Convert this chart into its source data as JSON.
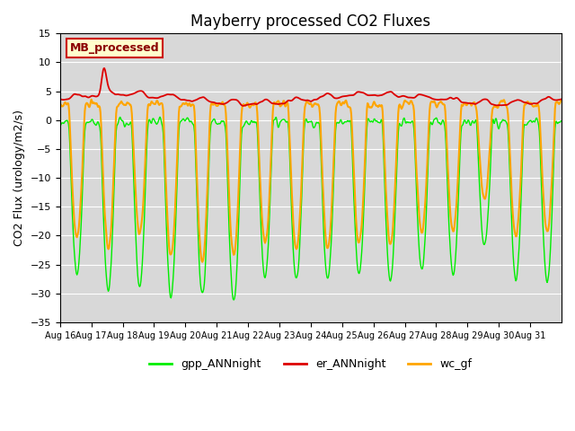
{
  "title": "Mayberry processed CO2 Fluxes",
  "ylabel": "CO2 Flux (urology/m2/s)",
  "ylim": [
    -35,
    15
  ],
  "yticks": [
    -35,
    -30,
    -25,
    -20,
    -15,
    -10,
    -5,
    0,
    5,
    10,
    15
  ],
  "xtick_labels": [
    "Aug 16",
    "Aug 17",
    "Aug 18",
    "Aug 19",
    "Aug 20",
    "Aug 21",
    "Aug 22",
    "Aug 23",
    "Aug 24",
    "Aug 25",
    "Aug 26",
    "Aug 27",
    "Aug 28",
    "Aug 29",
    "Aug 30",
    "Aug 31"
  ],
  "bg_color": "#d8d8d8",
  "grid_color": "#ffffff",
  "line_colors": {
    "gpp": "#00ee00",
    "er": "#dd0000",
    "wc": "#ffa500"
  },
  "line_widths": {
    "gpp": 1.0,
    "er": 1.3,
    "wc": 1.5
  },
  "legend_labels": [
    "gpp_ANNnight",
    "er_ANNnight",
    "wc_gf"
  ],
  "inset_label": "MB_processed",
  "inset_bg": "#ffffcc",
  "inset_border": "#cc0000",
  "title_fontsize": 12
}
